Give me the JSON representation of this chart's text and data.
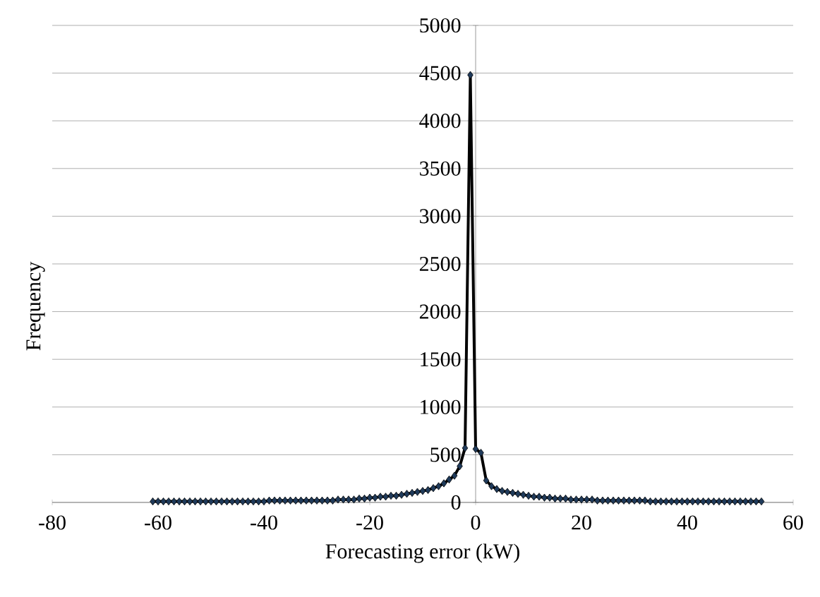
{
  "chart_data": {
    "type": "line",
    "xlabel": "Forecasting error (kW)",
    "ylabel": "Frequency",
    "x": [
      -61,
      -60,
      -59,
      -58,
      -57,
      -56,
      -55,
      -54,
      -53,
      -52,
      -51,
      -50,
      -49,
      -48,
      -47,
      -46,
      -45,
      -44,
      -43,
      -42,
      -41,
      -40,
      -39,
      -38,
      -37,
      -36,
      -35,
      -34,
      -33,
      -32,
      -31,
      -30,
      -29,
      -28,
      -27,
      -26,
      -25,
      -24,
      -23,
      -22,
      -21,
      -20,
      -19,
      -18,
      -17,
      -16,
      -15,
      -14,
      -13,
      -12,
      -11,
      -10,
      -9,
      -8,
      -7,
      -6,
      -5,
      -4,
      -3,
      -2,
      -1,
      0,
      1,
      2,
      3,
      4,
      5,
      6,
      7,
      8,
      9,
      10,
      11,
      12,
      13,
      14,
      15,
      16,
      17,
      18,
      19,
      20,
      21,
      22,
      23,
      24,
      25,
      26,
      27,
      28,
      29,
      30,
      31,
      32,
      33,
      34,
      35,
      36,
      37,
      38,
      39,
      40,
      41,
      42,
      43,
      44,
      45,
      46,
      47,
      48,
      49,
      50,
      51,
      52,
      53,
      54
    ],
    "series": [
      {
        "color": "#1f3a5a",
        "values": [
          10,
          10,
          10,
          10,
          10,
          10,
          10,
          10,
          10,
          10,
          10,
          10,
          10,
          10,
          10,
          10,
          10,
          10,
          10,
          10,
          10,
          10,
          20,
          20,
          20,
          20,
          20,
          20,
          20,
          20,
          20,
          20,
          20,
          20,
          20,
          30,
          30,
          30,
          30,
          40,
          40,
          50,
          50,
          60,
          60,
          70,
          70,
          80,
          90,
          100,
          110,
          120,
          130,
          150,
          170,
          200,
          240,
          280,
          380,
          570,
          4480,
          560,
          520,
          230,
          170,
          140,
          120,
          110,
          100,
          90,
          80,
          70,
          60,
          60,
          50,
          50,
          40,
          40,
          40,
          30,
          30,
          30,
          30,
          30,
          20,
          20,
          20,
          20,
          20,
          20,
          20,
          20,
          20,
          20,
          10,
          10,
          10,
          10,
          10,
          10,
          10,
          10,
          10,
          10,
          10,
          10,
          10,
          10,
          10,
          10,
          10,
          10,
          10,
          10,
          10,
          10
        ]
      }
    ],
    "xlim": [
      -80,
      60
    ],
    "xticks": [
      -80,
      -60,
      -40,
      -20,
      0,
      20,
      40,
      60
    ],
    "ylim": [
      0,
      5000
    ],
    "yticks": [
      0,
      500,
      1000,
      1500,
      2000,
      2500,
      3000,
      3500,
      4000,
      4500,
      5000
    ],
    "grid": "y",
    "marker": "diamond",
    "line_style": "solid"
  }
}
